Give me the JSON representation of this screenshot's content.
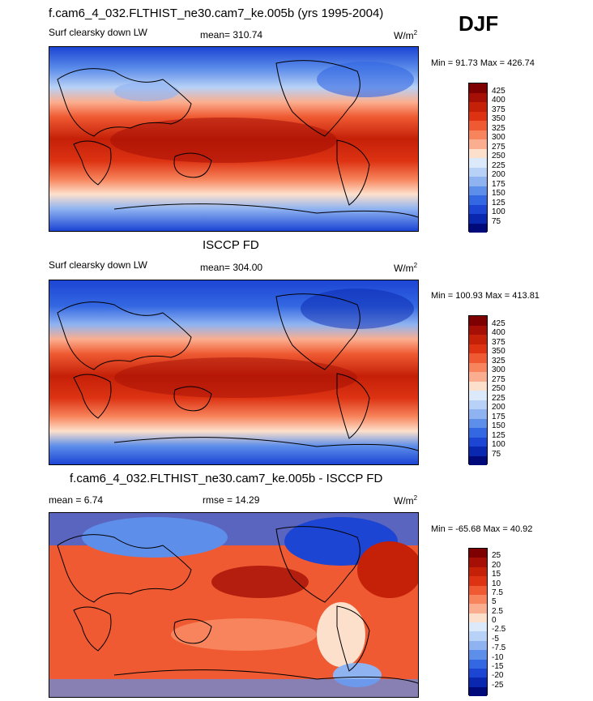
{
  "season": "DJF",
  "panels": [
    {
      "title": "f.cam6_4_032.FLTHIST_ne30.cam7_ke.005b (yrs 1995-2004)",
      "left_label": "Surf clearsky down LW",
      "center_label": "mean= 310.74",
      "units": "W/m",
      "units_sup": "2",
      "minmax": "Min =  91.73 Max = 426.74",
      "colorbar_labels": [
        "425",
        "400",
        "375",
        "350",
        "325",
        "300",
        "275",
        "250",
        "225",
        "200",
        "175",
        "150",
        "125",
        "100",
        "75"
      ],
      "colorbar_colors": [
        "#7f0000",
        "#a50f05",
        "#c52008",
        "#dd3313",
        "#ef5a32",
        "#f7845c",
        "#fbae8f",
        "#fde0cc",
        "#dbe9fb",
        "#b8d1f6",
        "#8fb3f1",
        "#5d8eea",
        "#3468e2",
        "#1c45d4",
        "#0a27b0",
        "#000a7a"
      ]
    },
    {
      "title": "ISCCP FD",
      "left_label": "Surf clearsky down LW",
      "center_label": "mean= 304.00",
      "units": "W/m",
      "units_sup": "2",
      "minmax": "Min = 100.93 Max = 413.81",
      "colorbar_labels": [
        "425",
        "400",
        "375",
        "350",
        "325",
        "300",
        "275",
        "250",
        "225",
        "200",
        "175",
        "150",
        "125",
        "100",
        "75"
      ],
      "colorbar_colors": [
        "#7f0000",
        "#a50f05",
        "#c52008",
        "#dd3313",
        "#ef5a32",
        "#f7845c",
        "#fbae8f",
        "#fde0cc",
        "#dbe9fb",
        "#b8d1f6",
        "#8fb3f1",
        "#5d8eea",
        "#3468e2",
        "#1c45d4",
        "#0a27b0",
        "#000a7a"
      ]
    },
    {
      "title": "f.cam6_4_032.FLTHIST_ne30.cam7_ke.005b - ISCCP FD",
      "left_label": "mean =   6.74",
      "center_label": "rmse =  14.29",
      "units": "W/m",
      "units_sup": "2",
      "minmax": "Min = -65.68 Max =  40.92",
      "colorbar_labels": [
        "25",
        "20",
        "15",
        "10",
        "7.5",
        "5",
        "2.5",
        "0",
        "-2.5",
        "-5",
        "-7.5",
        "-10",
        "-15",
        "-20",
        "-25"
      ],
      "colorbar_colors": [
        "#7f0000",
        "#a50f05",
        "#c52008",
        "#dd3313",
        "#ef5a32",
        "#f7845c",
        "#fbae8f",
        "#fde0cc",
        "#dbe9fb",
        "#b8d1f6",
        "#8fb3f1",
        "#5d8eea",
        "#3468e2",
        "#1c45d4",
        "#0a27b0",
        "#000a7a"
      ]
    }
  ]
}
